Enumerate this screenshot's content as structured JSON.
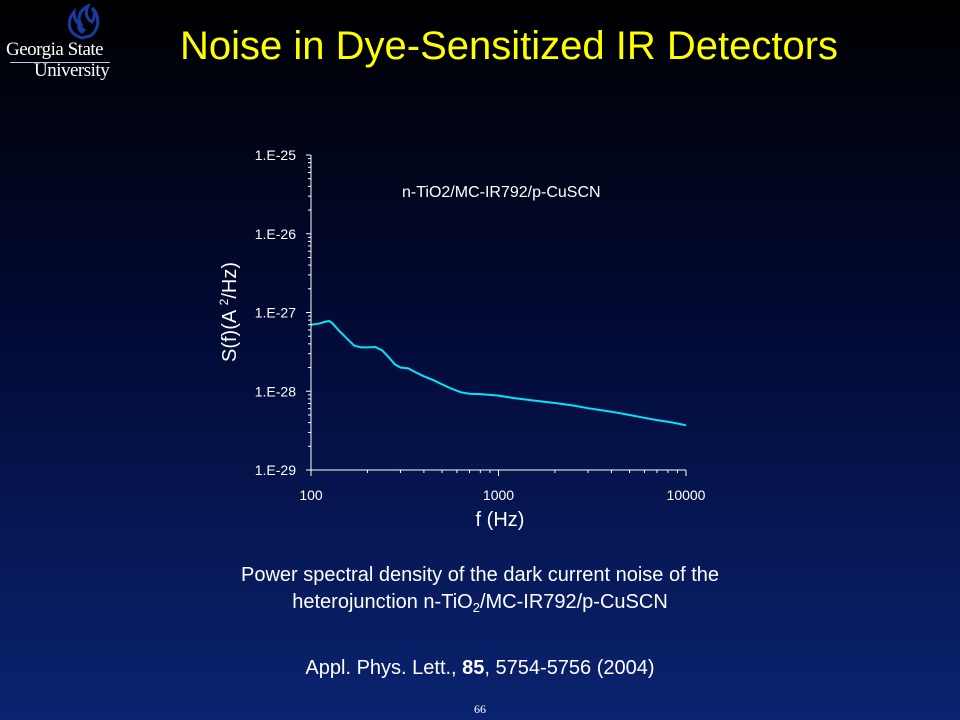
{
  "logo": {
    "line1": "Georgia State",
    "line2": "University",
    "mark_icon": "flame-icon"
  },
  "title": "Noise in Dye-Sensitized IR Detectors",
  "chart_data": {
    "type": "line",
    "scale": "log-log",
    "annotation": "n-TiO2/MC-IR792/p-CuSCN",
    "xlabel": "f (Hz)",
    "ylabel_pre": "S(f)(A ",
    "ylabel_sup": "2",
    "ylabel_post": "/Hz)",
    "xlim": [
      100,
      10000
    ],
    "ylim": [
      1e-29,
      1e-25
    ],
    "x_ticks": [
      "100",
      "1000",
      "10000"
    ],
    "y_ticks": [
      "1.E-29",
      "1.E-28",
      "1.E-27",
      "1.E-26",
      "1.E-25"
    ],
    "grid": false,
    "series": [
      {
        "color": "#00e5ff",
        "x": [
          100,
          110,
          118,
          125,
          130,
          140,
          155,
          170,
          185,
          200,
          220,
          240,
          260,
          280,
          300,
          330,
          360,
          400,
          450,
          500,
          560,
          630,
          700,
          800,
          900,
          1000,
          1200,
          1500,
          2000,
          2500,
          3000,
          4000,
          5000,
          6000,
          7000,
          8000,
          9000,
          10000
        ],
        "y": [
          7e-28,
          7.2e-28,
          7.6e-28,
          7.8e-28,
          7.3e-28,
          6e-28,
          4.7e-28,
          3.8e-28,
          3.6e-28,
          3.6e-28,
          3.65e-28,
          3.3e-28,
          2.7e-28,
          2.2e-28,
          2e-28,
          1.95e-28,
          1.75e-28,
          1.55e-28,
          1.38e-28,
          1.22e-28,
          1.08e-28,
          9.7e-29,
          9.3e-29,
          9.2e-29,
          9e-29,
          8.8e-29,
          8.2e-29,
          7.7e-29,
          7.1e-29,
          6.6e-29,
          6.1e-29,
          5.5e-29,
          5e-29,
          4.6e-29,
          4.3e-29,
          4.1e-29,
          3.9e-29,
          3.7e-29
        ]
      }
    ]
  },
  "caption": {
    "line1": "Power spectral density of the dark current noise of the",
    "line2_pre": "heterojunction n-TiO",
    "line2_sub": "2",
    "line2_post": "/MC-IR792/p-CuSCN"
  },
  "reference": {
    "pre": "Appl. Phys. Lett., ",
    "volume": "85",
    "post": ", 5754-5756 (2004)"
  },
  "page_number": "66"
}
